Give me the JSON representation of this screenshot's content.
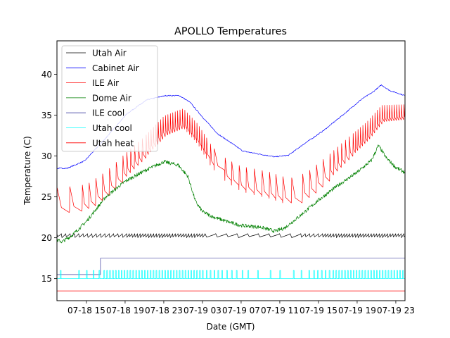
{
  "chart_data": {
    "type": "line",
    "title": "APOLLO Temperatures",
    "xlabel": "Date (GMT)",
    "ylabel": "Temperature (C)",
    "x_unit": "hours since 07-18 15:00 GMT",
    "xlim": [
      -3.05,
      32.95
    ],
    "ylim": [
      12.3,
      44.1
    ],
    "grid": false,
    "legend_position": "top-left",
    "x_ticks": [
      {
        "value": 0,
        "label": "07-18 15"
      },
      {
        "value": 4,
        "label": "07-18 19"
      },
      {
        "value": 8,
        "label": "07-18 23"
      },
      {
        "value": 12,
        "label": "07-19 03"
      },
      {
        "value": 16,
        "label": "07-19 07"
      },
      {
        "value": 20,
        "label": "07-19 11"
      },
      {
        "value": 24,
        "label": "07-19 15"
      },
      {
        "value": 28,
        "label": "07-19 19"
      },
      {
        "value": 32,
        "label": "07-19 23"
      }
    ],
    "y_ticks": [
      15,
      20,
      25,
      30,
      35,
      40
    ],
    "series": [
      {
        "name": "Utah Air",
        "color": "#000000",
        "style": "sawtooth",
        "base": 20.5,
        "amplitude": 0.5,
        "x": [
          -3.05,
          32.95
        ],
        "y": [
          20.3,
          20.3
        ]
      },
      {
        "name": "Cabinet Air",
        "color": "#0000ff",
        "style": "smooth",
        "x": [
          -3.05,
          -2.0,
          -0.2,
          2.0,
          4.2,
          6.3,
          8.2,
          9.6,
          10.7,
          12.2,
          13.6,
          15.1,
          16.2,
          17.6,
          19.5,
          20.9,
          22.4,
          24.5,
          26.7,
          28.5,
          29.6,
          30.5,
          31.4,
          32.95
        ],
        "y": [
          28.5,
          28.5,
          29.4,
          32.2,
          35.2,
          36.9,
          37.4,
          37.4,
          36.6,
          34.5,
          32.7,
          31.5,
          30.6,
          30.3,
          29.9,
          30.1,
          31.4,
          33.1,
          35.2,
          37.0,
          37.8,
          38.7,
          38.0,
          37.4
        ]
      },
      {
        "name": "ILE Air",
        "color": "#ff0000",
        "style": "spiky",
        "x": [
          -3.05,
          -2.5,
          -1.5,
          0.0,
          2.0,
          4.0,
          6.0,
          8.0,
          10.0,
          11.5,
          13.0,
          14.5,
          16.0,
          17.5,
          19.0,
          20.5,
          21.5,
          23.0,
          25.0,
          27.0,
          29.0,
          30.5,
          32.95
        ],
        "y": [
          23.1,
          23.1,
          23.3,
          23.7,
          25.5,
          27.8,
          30.0,
          32.5,
          33.5,
          31.5,
          28.5,
          26.8,
          25.7,
          25.2,
          24.8,
          24.2,
          24.3,
          25.4,
          27.5,
          29.8,
          32.0,
          34.2,
          34.5
        ],
        "spike_height": [
          3.0,
          3.0,
          3.0,
          2.8,
          2.6,
          2.5,
          2.4,
          2.4,
          2.3,
          2.4,
          2.6,
          2.8,
          3.0,
          3.2,
          3.2,
          3.2,
          3.0,
          2.8,
          2.6,
          2.4,
          2.2,
          2.0,
          1.8
        ]
      },
      {
        "name": "Dome Air",
        "color": "#008000",
        "style": "noisy",
        "x": [
          -3.05,
          -2.5,
          -1.5,
          0.0,
          2.0,
          4.0,
          6.0,
          8.0,
          9.5,
          10.5,
          11.3,
          12.0,
          13.0,
          14.5,
          16.0,
          18.0,
          19.5,
          20.5,
          22.0,
          24.0,
          26.0,
          28.0,
          29.5,
          30.2,
          31.0,
          32.0,
          32.95
        ],
        "y": [
          19.7,
          19.5,
          20.3,
          22.0,
          25.0,
          26.9,
          28.2,
          29.3,
          28.9,
          27.5,
          24.4,
          23.2,
          22.6,
          22.0,
          21.5,
          21.3,
          20.8,
          21.2,
          22.6,
          24.6,
          26.4,
          28.0,
          29.5,
          31.3,
          29.8,
          28.6,
          28.0
        ]
      },
      {
        "name": "ILE cool",
        "color": "#3f3f9f",
        "style": "step",
        "x": [
          -3.05,
          1.45,
          1.45,
          32.95
        ],
        "y": [
          15.5,
          15.5,
          17.5,
          17.5
        ]
      },
      {
        "name": "Utah cool",
        "color": "#00ffff",
        "style": "pulses",
        "base": 15.0,
        "high": 16.0,
        "pulse_times": [
          -2.7,
          -0.8,
          0.0,
          0.7,
          1.3,
          1.8,
          2.1,
          2.4,
          2.7,
          3.0,
          3.3,
          3.6,
          3.9,
          4.2,
          4.5,
          4.8,
          5.1,
          5.4,
          5.7,
          6.0,
          6.3,
          6.6,
          6.9,
          7.2,
          7.5,
          7.8,
          8.1,
          8.4,
          8.7,
          9.0,
          9.3,
          9.6,
          9.9,
          10.2,
          10.5,
          10.8,
          11.1,
          11.4,
          11.7,
          12.0,
          12.4,
          12.8,
          13.2,
          13.6,
          14.0,
          14.5,
          15.0,
          15.5,
          16.1,
          16.7,
          17.7,
          19.0,
          20.0,
          21.4,
          22.2,
          23.0,
          23.5,
          23.9,
          24.3,
          24.7,
          25.1,
          25.5,
          25.8,
          26.1,
          26.4,
          26.7,
          27.0,
          27.3,
          27.6,
          27.9,
          28.2,
          28.5,
          28.8,
          29.1,
          29.4,
          29.7,
          30.0,
          30.3,
          30.6,
          30.9,
          31.2,
          31.5,
          31.8,
          32.1,
          32.4,
          32.7
        ]
      },
      {
        "name": "Utah heat",
        "color": "#ff0000",
        "style": "flat",
        "x": [
          -3.05,
          32.95
        ],
        "y": [
          13.5,
          13.5
        ]
      }
    ]
  }
}
